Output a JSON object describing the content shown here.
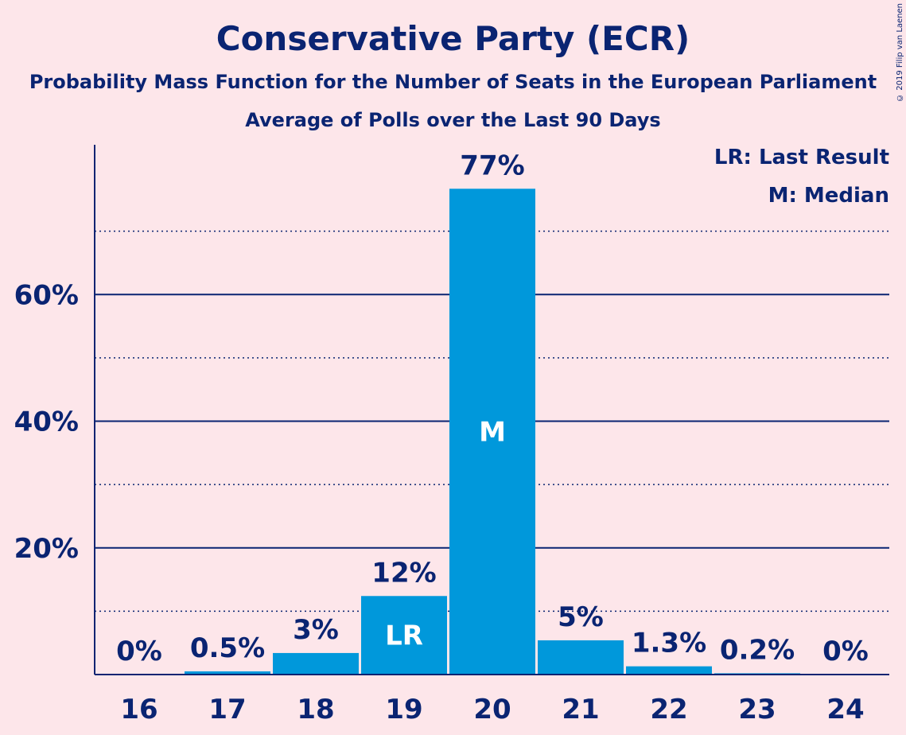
{
  "header": {
    "title": "Conservative Party (ECR)",
    "subtitle1": "Probability Mass Function for the Number of Seats in the European Parliament",
    "subtitle2": "Average of Polls over the Last 90 Days",
    "copyright": "© 2019 Filip van Laenen"
  },
  "legend": {
    "last_result": "LR: Last Result",
    "median": "M: Median"
  },
  "colors": {
    "background": "#fde6ea",
    "bar": "#0098db",
    "text": "#0a2472",
    "bar_label_inside": "#ffffff"
  },
  "chart_data": {
    "type": "bar",
    "categories": [
      "16",
      "17",
      "18",
      "19",
      "20",
      "21",
      "22",
      "23",
      "24"
    ],
    "values": [
      0,
      0.5,
      3.4,
      12.4,
      76.7,
      5.4,
      1.3,
      0.2,
      0
    ],
    "value_labels": [
      "0%",
      "0.5%",
      "3%",
      "12%",
      "77%",
      "5%",
      "1.3%",
      "0.2%",
      "0%"
    ],
    "markers": {
      "19": "LR",
      "20": "M"
    },
    "ylim": [
      0,
      83
    ],
    "yticks": [
      20,
      40,
      60
    ],
    "ytick_labels": [
      "20%",
      "40%",
      "60%"
    ],
    "minor_gridlines": [
      10,
      30,
      50,
      70
    ],
    "grid": true,
    "legend_position": "top-right"
  }
}
